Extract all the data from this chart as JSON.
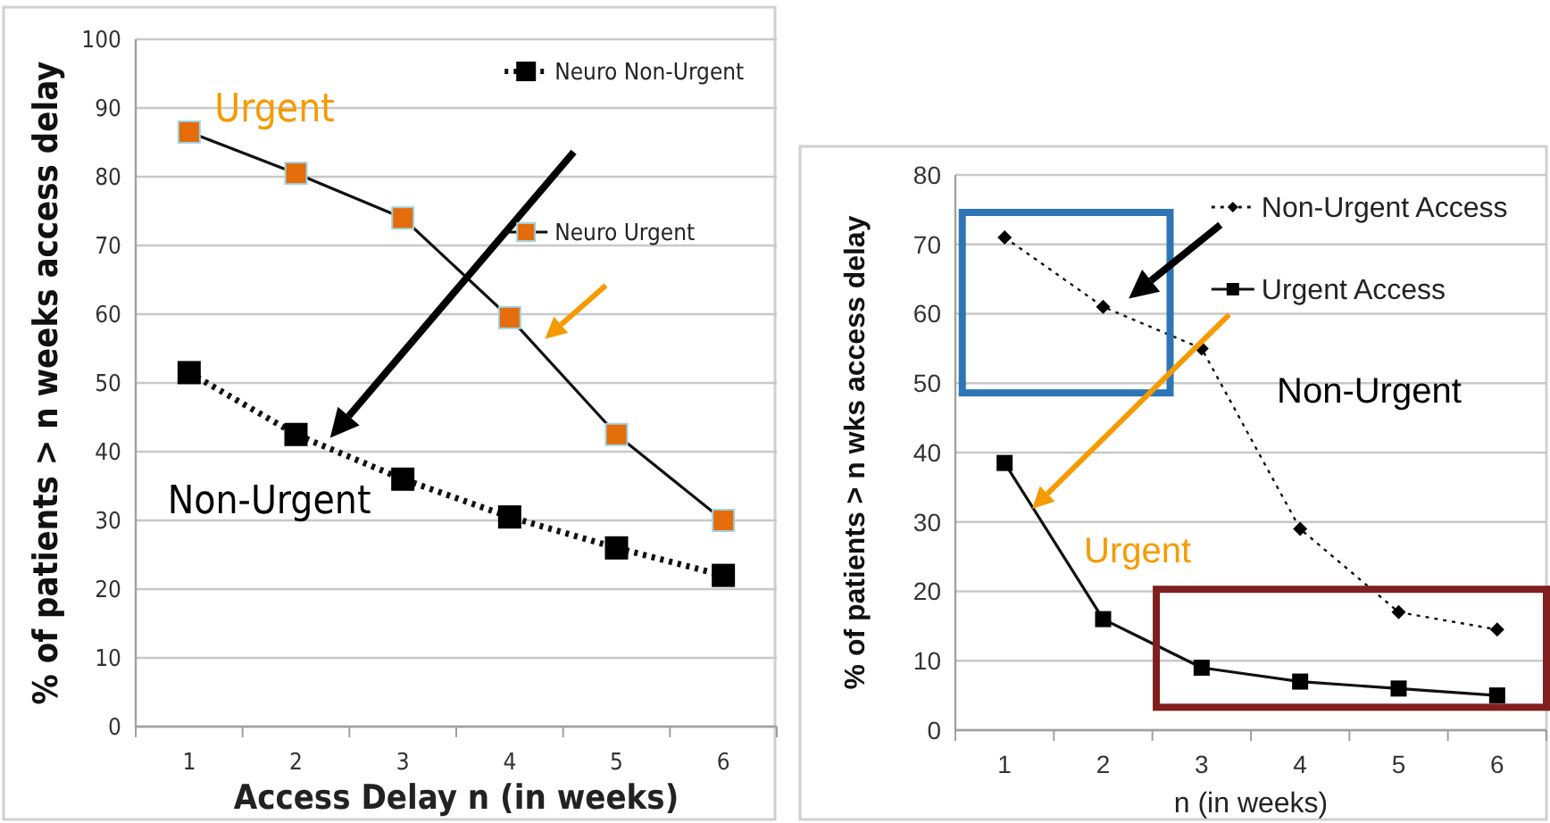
{
  "chart_data": [
    {
      "type": "line",
      "categories": [
        "1",
        "2",
        "3",
        "4",
        "5",
        "6"
      ],
      "xlabel": "Access Delay n  (in weeks)",
      "ylabel": "% of patients  > n weeks access delay",
      "ylim": [
        0,
        100
      ],
      "yticks": [
        0,
        10,
        20,
        30,
        40,
        50,
        60,
        70,
        80,
        90,
        100
      ],
      "grid": "y",
      "legend": "top right",
      "series": [
        {
          "name": "Neuro Non-Urgent",
          "color": "#000000",
          "marker": "square",
          "line_style": "dotted",
          "values": [
            51.5,
            42.5,
            36,
            30.5,
            26,
            22
          ]
        },
        {
          "name": "Neuro Urgent",
          "color": "#e46c0a",
          "marker": "square",
          "line_style": "solid",
          "values": [
            86.5,
            80.5,
            74,
            59.5,
            42.5,
            30
          ]
        }
      ],
      "annotations": [
        "Urgent",
        "Non-Urgent"
      ]
    },
    {
      "type": "line",
      "categories": [
        "1",
        "2",
        "3",
        "4",
        "5",
        "6"
      ],
      "xlabel": "n (in weeks)",
      "ylabel": "% of patients  > n wks access delay",
      "ylim": [
        0,
        80
      ],
      "yticks": [
        0,
        10,
        20,
        30,
        40,
        50,
        60,
        70,
        80
      ],
      "grid": "y",
      "legend": "top right",
      "series": [
        {
          "name": "Non-Urgent Access",
          "color": "#000000",
          "marker": "diamond",
          "line_style": "dotted",
          "values": [
            71,
            61,
            55,
            29,
            17,
            14.5
          ]
        },
        {
          "name": "Urgent Access",
          "color": "#000000",
          "marker": "square",
          "line_style": "solid",
          "values": [
            38.5,
            16,
            9,
            7,
            6,
            5
          ]
        }
      ],
      "annotations": [
        "Non-Urgent",
        "Urgent"
      ]
    }
  ]
}
